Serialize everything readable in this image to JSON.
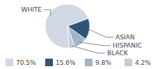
{
  "chart_data": {
    "type": "pie",
    "categories": [
      "WHITE",
      "ASIAN",
      "HISPANIC",
      "BLACK"
    ],
    "values": [
      70.5,
      15.6,
      9.8,
      4.2
    ],
    "value_labels": [
      "70.5%",
      "15.6%",
      "9.8%",
      "4.2%"
    ],
    "colors": [
      "#cfd8e4",
      "#2f5479",
      "#a3b3c8",
      "#c3cdda"
    ],
    "legend": "bottom"
  }
}
